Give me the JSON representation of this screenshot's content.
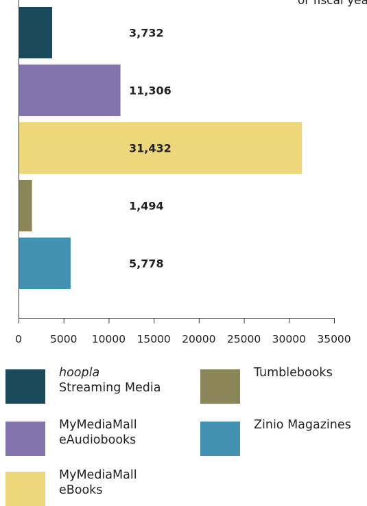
{
  "corner_text": "or fiscal yea",
  "chart_data": {
    "type": "bar",
    "orientation": "horizontal",
    "categories": [
      "hoopla Streaming Media",
      "MyMediaMall eAudiobooks",
      "MyMediaMall eBooks",
      "Tumblebooks",
      "Zinio Magazines"
    ],
    "values": [
      3732,
      11306,
      31432,
      1494,
      5778
    ],
    "value_labels": [
      "3,732",
      "11,306",
      "31,432",
      "1,494",
      "5,778"
    ],
    "colors": [
      "#1a4a5c",
      "#8274ad",
      "#ecd87a",
      "#8b8657",
      "#4291b2"
    ],
    "xlim": [
      0,
      35000
    ],
    "x_ticks": [
      0,
      5000,
      10000,
      15000,
      20000,
      25000,
      30000,
      35000
    ],
    "x_tick_labels": [
      "0",
      "5000",
      "10000",
      "15000",
      "20000",
      "25000",
      "30000",
      "35000"
    ],
    "grid": false,
    "legend_placement": "bottom"
  },
  "legend": {
    "items": [
      {
        "line1": "hoopla",
        "line2": "Streaming Media",
        "line1_italic": true,
        "color": "#1a4a5c"
      },
      {
        "line1": "MyMediaMall",
        "line2": "eAudiobooks",
        "line1_italic": false,
        "color": "#8274ad"
      },
      {
        "line1": "MyMediaMall",
        "line2": "eBooks",
        "line1_italic": false,
        "color": "#ecd87a"
      },
      {
        "line1": "Tumblebooks",
        "line2": "",
        "line1_italic": false,
        "color": "#8b8657"
      },
      {
        "line1": "Zinio Magazines",
        "line2": "",
        "line1_italic": false,
        "color": "#4291b2"
      }
    ]
  }
}
